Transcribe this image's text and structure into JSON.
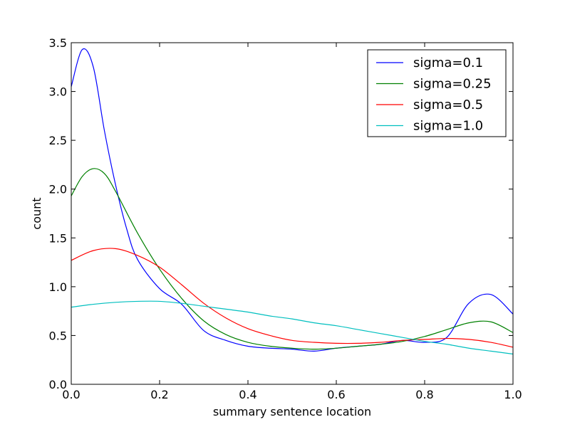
{
  "chart_data": {
    "type": "line",
    "title": "",
    "xlabel": "summary sentence location",
    "ylabel": "count",
    "xlim": [
      0.0,
      1.0
    ],
    "ylim": [
      0.0,
      3.5
    ],
    "xticks": [
      "0.0",
      "0.2",
      "0.4",
      "0.6",
      "0.8",
      "1.0"
    ],
    "yticks": [
      "0.0",
      "0.5",
      "1.0",
      "1.5",
      "2.0",
      "2.5",
      "3.0",
      "3.5"
    ],
    "grid": false,
    "legend_position": "top-right",
    "series": [
      {
        "name": "sigma=0.1",
        "color": "#0000ff",
        "x": [
          0.0,
          0.025,
          0.05,
          0.075,
          0.1,
          0.125,
          0.15,
          0.2,
          0.25,
          0.3,
          0.35,
          0.4,
          0.45,
          0.5,
          0.55,
          0.6,
          0.65,
          0.7,
          0.75,
          0.8,
          0.85,
          0.9,
          0.95,
          1.0
        ],
        "y": [
          3.05,
          3.43,
          3.25,
          2.6,
          2.05,
          1.6,
          1.28,
          0.98,
          0.82,
          0.55,
          0.45,
          0.39,
          0.37,
          0.36,
          0.34,
          0.37,
          0.39,
          0.41,
          0.45,
          0.43,
          0.48,
          0.83,
          0.92,
          0.72
        ]
      },
      {
        "name": "sigma=0.25",
        "color": "#008000",
        "x": [
          0.0,
          0.025,
          0.05,
          0.075,
          0.1,
          0.15,
          0.2,
          0.25,
          0.3,
          0.35,
          0.4,
          0.45,
          0.5,
          0.55,
          0.6,
          0.65,
          0.7,
          0.75,
          0.8,
          0.85,
          0.9,
          0.95,
          1.0
        ],
        "y": [
          1.93,
          2.13,
          2.21,
          2.16,
          1.98,
          1.55,
          1.18,
          0.88,
          0.65,
          0.51,
          0.43,
          0.39,
          0.37,
          0.36,
          0.37,
          0.39,
          0.41,
          0.44,
          0.49,
          0.56,
          0.63,
          0.64,
          0.53
        ]
      },
      {
        "name": "sigma=0.5",
        "color": "#ff0000",
        "x": [
          0.0,
          0.05,
          0.1,
          0.15,
          0.2,
          0.25,
          0.3,
          0.35,
          0.4,
          0.45,
          0.5,
          0.55,
          0.6,
          0.65,
          0.7,
          0.75,
          0.8,
          0.85,
          0.9,
          0.95,
          1.0
        ],
        "y": [
          1.27,
          1.37,
          1.39,
          1.32,
          1.2,
          1.02,
          0.83,
          0.68,
          0.57,
          0.5,
          0.45,
          0.43,
          0.42,
          0.42,
          0.43,
          0.45,
          0.46,
          0.47,
          0.46,
          0.43,
          0.38
        ]
      },
      {
        "name": "sigma=1.0",
        "color": "#00bfbf",
        "x": [
          0.0,
          0.05,
          0.1,
          0.15,
          0.2,
          0.25,
          0.3,
          0.35,
          0.4,
          0.45,
          0.5,
          0.55,
          0.6,
          0.65,
          0.7,
          0.75,
          0.8,
          0.85,
          0.9,
          0.95,
          1.0
        ],
        "y": [
          0.79,
          0.82,
          0.84,
          0.85,
          0.85,
          0.83,
          0.8,
          0.77,
          0.74,
          0.7,
          0.67,
          0.63,
          0.6,
          0.56,
          0.52,
          0.48,
          0.44,
          0.41,
          0.37,
          0.34,
          0.31
        ]
      }
    ]
  }
}
